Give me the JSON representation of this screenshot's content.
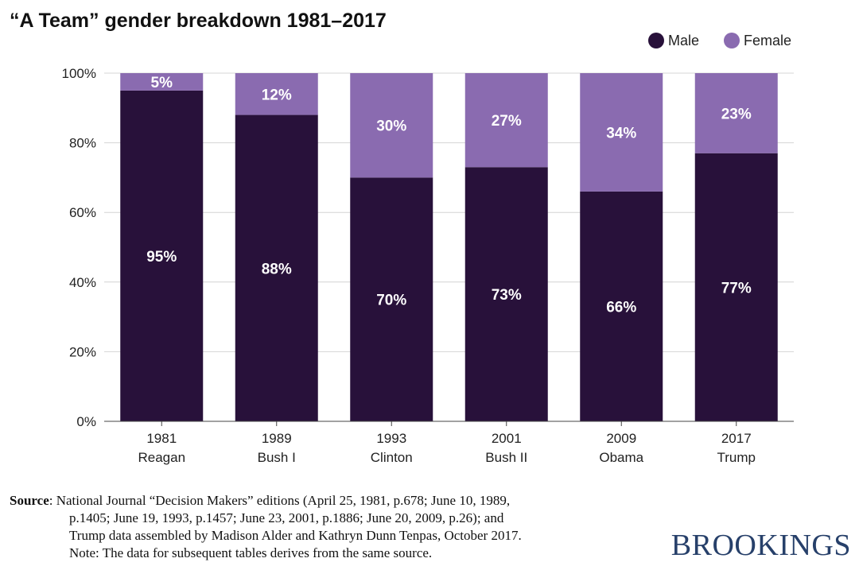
{
  "chart_data": {
    "type": "bar",
    "stacked": true,
    "title": "“A Team” gender breakdown 1981–2017",
    "categories": [
      [
        "1981",
        "Reagan"
      ],
      [
        "1989",
        "Bush I"
      ],
      [
        "1993",
        "Clinton"
      ],
      [
        "2001",
        "Bush II"
      ],
      [
        "2009",
        "Obama"
      ],
      [
        "2017",
        "Trump"
      ]
    ],
    "series": [
      {
        "name": "Male",
        "values": [
          95,
          88,
          70,
          73,
          66,
          77
        ],
        "labels": [
          "95%",
          "88%",
          "70%",
          "73%",
          "66%",
          "77%"
        ],
        "color": "#28113a"
      },
      {
        "name": "Female",
        "values": [
          5,
          12,
          30,
          27,
          34,
          23
        ],
        "labels": [
          "5%",
          "12%",
          "30%",
          "27%",
          "34%",
          "23%"
        ],
        "color": "#8a6bb0"
      }
    ],
    "ylim": [
      0,
      100
    ],
    "yticks": [
      0,
      20,
      40,
      60,
      80,
      100
    ],
    "ytick_labels": [
      "0%",
      "20%",
      "40%",
      "60%",
      "80%",
      "100%"
    ],
    "grid": true,
    "legend_position": "top-right",
    "xlabel": "",
    "ylabel": ""
  },
  "source": {
    "label": "Source",
    "lines": [
      ": National Journal “Decision Makers” editions (April 25, 1981, p.678; June 10, 1989,",
      "p.1405; June 19, 1993, p.1457; June 23, 2001, p.1886; June 20, 2009, p.26); and",
      "Trump data assembled by Madison Alder and Kathryn Dunn Tenpas, October 2017.",
      "Note: The data for subsequent tables derives from the same source."
    ]
  },
  "brand": "BROOKINGS",
  "colors": {
    "male": "#28113a",
    "female": "#8a6bb0",
    "grid": "#d4d4d4",
    "brand": "#27406a"
  }
}
